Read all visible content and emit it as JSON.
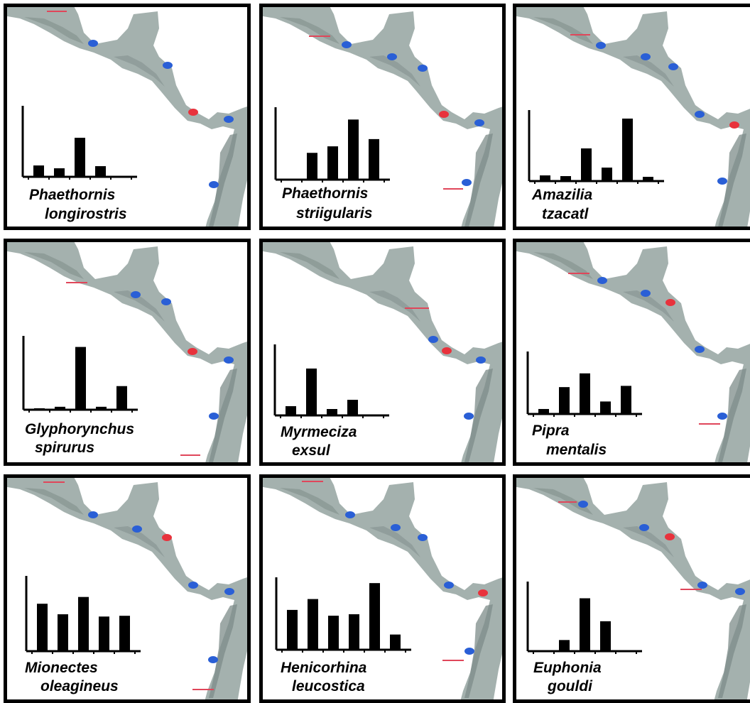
{
  "colors": {
    "land": "#a4b1ae",
    "land_shade": "#7d8c89",
    "site_marker": "#2a5fd6",
    "highlight_marker": "#e8323c",
    "range_limit": "#e0465a",
    "bar": "#000000"
  },
  "chart_data": [
    {
      "type": "bar",
      "species_line1": "Phaethornis",
      "species_line2": "longirostris",
      "values": [
        0.16,
        0.12,
        0.55,
        0.15,
        null
      ],
      "ylim": [
        0,
        1
      ]
    },
    {
      "type": "bar",
      "species_line1": "Phaethornis",
      "species_line2": "striigularis",
      "values": [
        0,
        0.37,
        0.46,
        0.83,
        0.56
      ],
      "ylim": [
        0,
        1
      ]
    },
    {
      "type": "bar",
      "species_line1": "Amazilia",
      "species_line2": "tzacatl",
      "values": [
        0.08,
        0.07,
        0.46,
        0.19,
        0.88,
        0.06
      ],
      "ylim": [
        0,
        1
      ]
    },
    {
      "type": "bar",
      "species_line1": "Glyphorynchus",
      "species_line2": "spirurus",
      "values": [
        0.02,
        0.04,
        0.85,
        0.04,
        0.32
      ],
      "ylim": [
        0,
        1
      ]
    },
    {
      "type": "bar",
      "species_line1": "Myrmeciza",
      "species_line2": "exsul",
      "values": [
        0.13,
        0.66,
        0.09,
        0.22,
        0
      ],
      "ylim": [
        0,
        1
      ]
    },
    {
      "type": "bar",
      "species_line1": "Pipra",
      "species_line2": "mentalis",
      "values": [
        0.08,
        0.43,
        0.65,
        0.2,
        0.45
      ],
      "ylim": [
        0,
        1
      ]
    },
    {
      "type": "bar",
      "species_line1": "Mionectes",
      "species_line2": "oleagineus",
      "values": [
        0.63,
        0.49,
        0.72,
        0.46,
        0.47
      ],
      "ylim": [
        0,
        1
      ]
    },
    {
      "type": "bar",
      "species_line1": "Henicorhina",
      "species_line2": "leucostica",
      "values": [
        0.55,
        0.7,
        0.47,
        0.49,
        0.92,
        0.21
      ],
      "ylim": [
        0,
        1
      ]
    },
    {
      "type": "bar",
      "species_line1": "Euphonia",
      "species_line2": "gouldi",
      "values": [
        0,
        0.16,
        0.76,
        0.43,
        0
      ],
      "ylim": [
        0,
        1
      ]
    }
  ]
}
